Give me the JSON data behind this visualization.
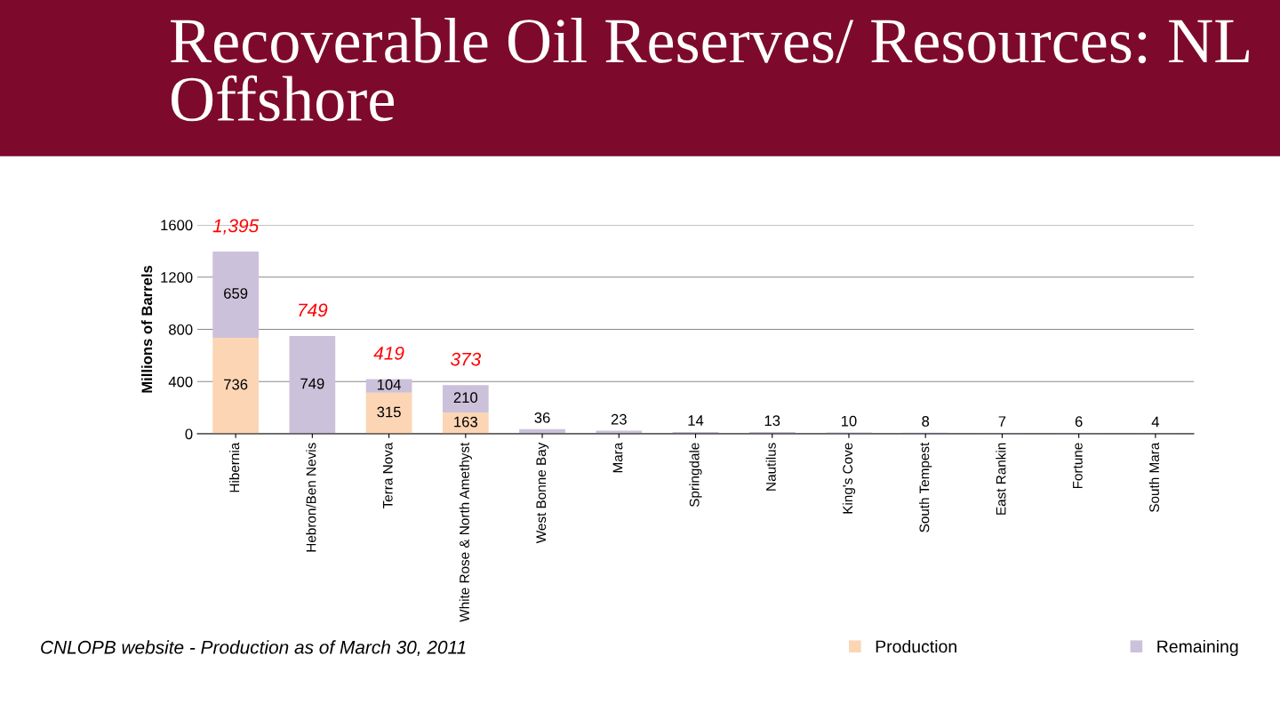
{
  "chart_data": {
    "type": "bar",
    "title": "Recoverable Oil Reserves/ Resources: NL Offshore",
    "ylabel": "Millions of Barrels",
    "categories": [
      "Hibernia",
      "Hebron/Ben Nevis",
      "Terra Nova",
      "White Rose & North Amethyst",
      "West Bonne Bay",
      "Mara",
      "Springdale",
      "Nautilus",
      "King's Cove",
      "South Tempest",
      "East Rankin",
      "Fortune",
      "South Mara"
    ],
    "stacked": true,
    "series": [
      {
        "name": "Production",
        "color": "#fcd5b5",
        "values": [
          736,
          null,
          315,
          163,
          null,
          null,
          null,
          null,
          null,
          null,
          null,
          null,
          null
        ],
        "value_labels": [
          "736",
          null,
          "315",
          "163",
          null,
          null,
          null,
          null,
          null,
          null,
          null,
          null,
          null
        ]
      },
      {
        "name": "Remaining",
        "color": "#ccc1da",
        "values": [
          659,
          749,
          104,
          210,
          36,
          23,
          14,
          13,
          10,
          8,
          7,
          6,
          4
        ],
        "value_labels": [
          "659",
          "749",
          "104",
          "210",
          "36",
          "23",
          "14",
          "13",
          "10",
          "8",
          "7",
          "6",
          "4"
        ]
      }
    ],
    "totals": [
      "1,395",
      "749",
      "419",
      "373",
      null,
      null,
      null,
      null,
      null,
      null,
      null,
      null,
      null
    ],
    "ylim": [
      0,
      1600
    ],
    "yticks": [
      0,
      400,
      800,
      1200,
      1600
    ],
    "grid": "y",
    "legend": "bottom right",
    "annotations": [
      "CNLOPB website - Production as of March 30, 2011"
    ]
  }
}
